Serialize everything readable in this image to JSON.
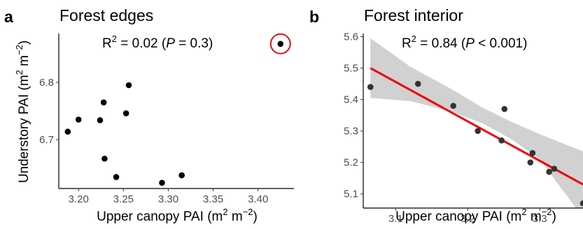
{
  "colors": {
    "point": "#000000",
    "point_b": "#333333",
    "fit_line": "#ee0000",
    "ci_band": "#c9c9c9",
    "outlier_ring": "#dd1111"
  },
  "chart_data": [
    {
      "type": "scatter",
      "panel": "a",
      "title": "Forest edges",
      "stat_r2": "R",
      "stat_sup": "2",
      "stat_pre": " = 0.02 (",
      "stat_p": "P",
      "stat_post": " = 0.3)",
      "xlabel": "Upper canopy PAI (m",
      "ylabel": "Understory PAI (m",
      "unit_mid": " m",
      "unit_sup1": "2",
      "unit_sup2": "−2",
      "unit_close": ")",
      "xlim": [
        3.178,
        3.44
      ],
      "ylim": [
        6.615,
        6.885
      ],
      "xticks": [
        3.2,
        3.25,
        3.3,
        3.35,
        3.4
      ],
      "xtick_labels": [
        "3.20",
        "3.25",
        "3.30",
        "3.35",
        "3.40"
      ],
      "yticks": [
        6.7,
        6.8
      ],
      "ytick_labels": [
        "6.7",
        "6.8"
      ],
      "grid": false,
      "points": [
        {
          "x": 3.188,
          "y": 6.714
        },
        {
          "x": 3.2,
          "y": 6.735
        },
        {
          "x": 3.224,
          "y": 6.734
        },
        {
          "x": 3.228,
          "y": 6.765
        },
        {
          "x": 3.229,
          "y": 6.667
        },
        {
          "x": 3.242,
          "y": 6.635
        },
        {
          "x": 3.253,
          "y": 6.746
        },
        {
          "x": 3.256,
          "y": 6.795
        },
        {
          "x": 3.293,
          "y": 6.625
        },
        {
          "x": 3.315,
          "y": 6.638
        },
        {
          "x": 3.425,
          "y": 6.867
        }
      ],
      "highlighted_point_index": 10
    },
    {
      "type": "scatter",
      "panel": "b",
      "title": "Forest interior",
      "stat_r2": "R",
      "stat_sup": "2",
      "stat_pre": " = 0.84 (",
      "stat_p": "P",
      "stat_post": " < 0.001)",
      "xlabel": "Upper canopy PAI (m",
      "unit_mid": " m",
      "unit_sup1": "2",
      "unit_sup2": "−2",
      "unit_close": ")",
      "xlim": [
        3.055,
        3.36
      ],
      "ylim": [
        5.055,
        5.61
      ],
      "xticks": [
        3.1,
        3.2,
        3.3
      ],
      "xtick_labels": [
        "3.1",
        "3.2",
        "3.3"
      ],
      "yticks": [
        5.1,
        5.2,
        5.3,
        5.4,
        5.5,
        5.6
      ],
      "ytick_labels": [
        "5.1",
        "5.2",
        "5.3",
        "5.4",
        "5.5",
        "5.6"
      ],
      "grid": false,
      "points": [
        {
          "x": 3.065,
          "y": 5.44
        },
        {
          "x": 3.131,
          "y": 5.45
        },
        {
          "x": 3.18,
          "y": 5.38
        },
        {
          "x": 3.214,
          "y": 5.3
        },
        {
          "x": 3.247,
          "y": 5.27
        },
        {
          "x": 3.251,
          "y": 5.37
        },
        {
          "x": 3.287,
          "y": 5.2
        },
        {
          "x": 3.29,
          "y": 5.23
        },
        {
          "x": 3.313,
          "y": 5.17
        },
        {
          "x": 3.32,
          "y": 5.18
        },
        {
          "x": 3.36,
          "y": 5.07
        }
      ],
      "fit": {
        "x": [
          3.065,
          3.36
        ],
        "y": [
          5.5,
          5.13
        ]
      },
      "ci_band": {
        "x": [
          3.065,
          3.12,
          3.18,
          3.22,
          3.26,
          3.3,
          3.36
        ],
        "upper": [
          5.595,
          5.505,
          5.43,
          5.375,
          5.33,
          5.29,
          5.235
        ],
        "lower": [
          5.405,
          5.395,
          5.36,
          5.325,
          5.275,
          5.21,
          5.025
        ]
      }
    }
  ]
}
